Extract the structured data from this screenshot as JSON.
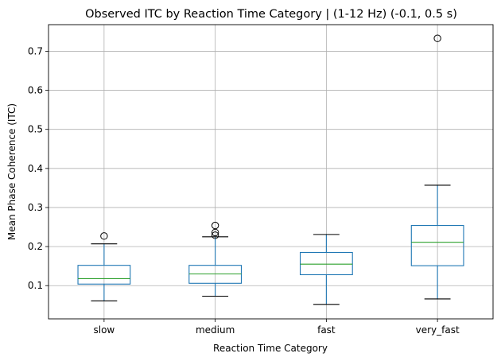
{
  "chart_data": {
    "type": "box",
    "title": "Observed ITC by Reaction Time Category | (1-12 Hz) (-0.1, 0.5 s)",
    "xlabel": "Reaction Time Category",
    "ylabel": "Mean Phase Coherence (ITC)",
    "ylim": [
      0.015,
      0.768
    ],
    "yticks": [
      0.1,
      0.2,
      0.3,
      0.4,
      0.5,
      0.6,
      0.7
    ],
    "ytick_labels": [
      "0.1",
      "0.2",
      "0.3",
      "0.4",
      "0.5",
      "0.6",
      "0.7"
    ],
    "grid": true,
    "categories": [
      "slow",
      "medium",
      "fast",
      "very_fast"
    ],
    "boxes": [
      {
        "category": "slow",
        "whisker_low": 0.061,
        "q1": 0.104,
        "median": 0.118,
        "q3": 0.152,
        "whisker_high": 0.207,
        "outliers": [
          0.227
        ]
      },
      {
        "category": "medium",
        "whisker_low": 0.073,
        "q1": 0.106,
        "median": 0.13,
        "q3": 0.152,
        "whisker_high": 0.225,
        "outliers": [
          0.229,
          0.236,
          0.254
        ]
      },
      {
        "category": "fast",
        "whisker_low": 0.052,
        "q1": 0.128,
        "median": 0.155,
        "q3": 0.185,
        "whisker_high": 0.231,
        "outliers": []
      },
      {
        "category": "very_fast",
        "whisker_low": 0.066,
        "q1": 0.151,
        "median": 0.211,
        "q3": 0.254,
        "whisker_high": 0.357,
        "outliers": [
          0.733
        ]
      }
    ],
    "colors": {
      "box": "#1f77b4",
      "median": "#2ca02c",
      "whisker": "#1f77b4",
      "cap": "#000000",
      "grid": "#b0b0b0"
    }
  }
}
